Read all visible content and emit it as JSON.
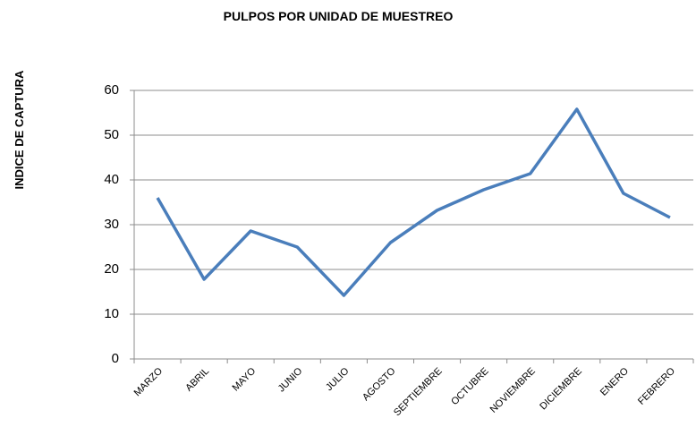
{
  "chart_data": {
    "type": "line",
    "title": "PULPOS POR UNIDAD  DE MUESTREO",
    "y_label": "INDICE DE CAPTURA",
    "categories": [
      "MARZO",
      "ABRIL",
      "MAYO",
      "JUNIO",
      "JULIO",
      "AGOSTO",
      "SEPTIEMBRE",
      "OCTUBRE",
      "NOVIEMBRE",
      "DICIEMBRE",
      "ENERO",
      "FEBRERO"
    ],
    "values": [
      36,
      17.8,
      28.6,
      25,
      14.2,
      26,
      33.2,
      37.8,
      41.4,
      55.8,
      37,
      31.6
    ],
    "color": "#4a7ebb",
    "ylim": [
      0,
      60
    ],
    "yticks": [
      0,
      10,
      20,
      30,
      40,
      50,
      60
    ],
    "grid": true
  }
}
